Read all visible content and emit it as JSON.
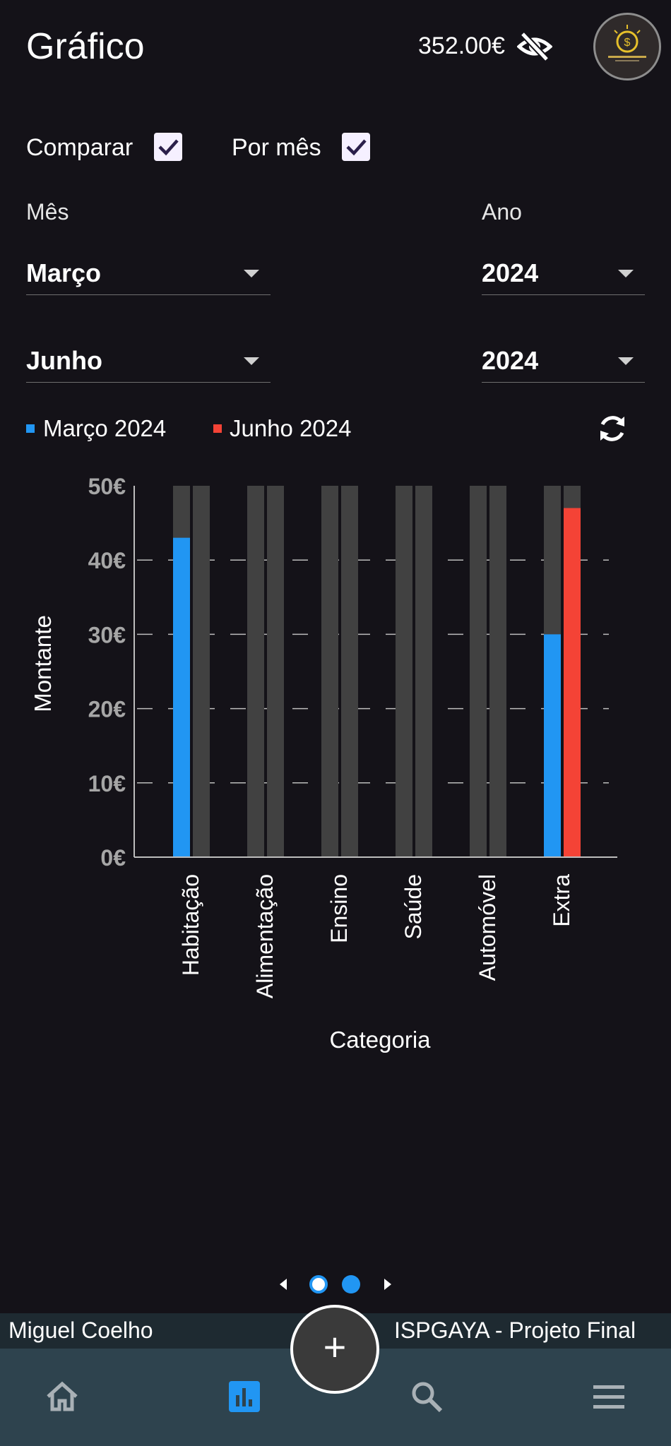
{
  "header": {
    "title": "Gráfico",
    "balance": "352.00€",
    "visibility_icon": "eye-off-icon",
    "avatar_icon": "logo-avatar"
  },
  "filters": {
    "compare_label": "Comparar",
    "compare_checked": true,
    "by_month_label": "Por mês",
    "by_month_checked": true,
    "month_label": "Mês",
    "year_label": "Ano",
    "month_1": "Março",
    "year_1": "2024",
    "month_2": "Junho",
    "year_2": "2024"
  },
  "legend": {
    "series_1": "Março 2024",
    "series_2": "Junho 2024",
    "refresh_icon": "refresh-icon"
  },
  "colors": {
    "series_1": "#2196f3",
    "series_2": "#f44336",
    "track": "#414141"
  },
  "chart_data": {
    "type": "bar",
    "categories": [
      "Habitação",
      "Alimentação",
      "Ensino",
      "Saúde",
      "Automóvel",
      "Extra"
    ],
    "series": [
      {
        "name": "Março 2024",
        "values": [
          43,
          0,
          0,
          0,
          0,
          30
        ]
      },
      {
        "name": "Junho 2024",
        "values": [
          0,
          0,
          0,
          0,
          0,
          47
        ]
      }
    ],
    "ylim": [
      0,
      50
    ],
    "yticks": [
      "0€",
      "10€",
      "20€",
      "30€",
      "40€",
      "50€"
    ],
    "ytick_values": [
      0,
      10,
      20,
      30,
      40,
      50
    ],
    "xlabel": "Categoria",
    "ylabel": "Montante",
    "grid": "horizontal dashed"
  },
  "pager": {
    "pages": 2,
    "current": 2
  },
  "footer": {
    "left": "Miguel Coelho",
    "right": "ISPGAYA - Projeto Final"
  },
  "nav": {
    "items": [
      "home-icon",
      "chart-icon",
      "search-icon",
      "menu-icon"
    ],
    "active": "chart-icon",
    "fab_label": "+"
  }
}
